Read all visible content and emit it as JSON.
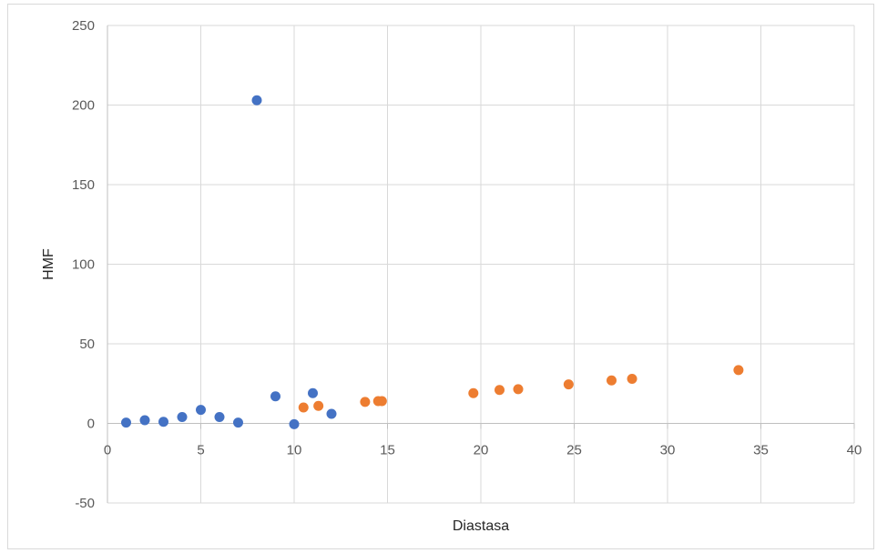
{
  "chart_data": {
    "type": "scatter",
    "xlabel": "Diastasa",
    "ylabel": "HMF",
    "xlim": [
      0,
      40
    ],
    "ylim": [
      -50,
      250
    ],
    "x_ticks": [
      "0",
      "5",
      "10",
      "15",
      "20",
      "25",
      "30",
      "35",
      "40"
    ],
    "y_ticks": [
      "250",
      "200",
      "150",
      "100",
      "50",
      "0",
      "-50"
    ],
    "grid": true,
    "legend": "none",
    "series": [
      {
        "color": "#4472c4",
        "points": [
          {
            "x": 1,
            "y": 0.5
          },
          {
            "x": 2,
            "y": 2
          },
          {
            "x": 3,
            "y": 1
          },
          {
            "x": 4,
            "y": 4
          },
          {
            "x": 5,
            "y": 8.5
          },
          {
            "x": 6,
            "y": 4
          },
          {
            "x": 7,
            "y": 0.5
          },
          {
            "x": 8,
            "y": 203
          },
          {
            "x": 9,
            "y": 17
          },
          {
            "x": 10,
            "y": -0.5
          },
          {
            "x": 11,
            "y": 19
          },
          {
            "x": 12,
            "y": 6
          }
        ]
      },
      {
        "color": "#ed7d31",
        "points": [
          {
            "x": 10.5,
            "y": 10
          },
          {
            "x": 11.3,
            "y": 11
          },
          {
            "x": 13.8,
            "y": 13.5
          },
          {
            "x": 14.5,
            "y": 14
          },
          {
            "x": 14.7,
            "y": 14
          },
          {
            "x": 19.6,
            "y": 19
          },
          {
            "x": 21,
            "y": 21
          },
          {
            "x": 22,
            "y": 21.5
          },
          {
            "x": 24.7,
            "y": 24.5
          },
          {
            "x": 27,
            "y": 27
          },
          {
            "x": 28.1,
            "y": 28
          },
          {
            "x": 33.8,
            "y": 33.5
          }
        ]
      }
    ]
  }
}
